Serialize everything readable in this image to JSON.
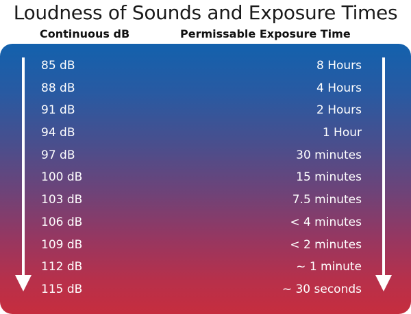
{
  "title": "Loudness of Sounds and Exposure Times",
  "headers": {
    "left": "Continuous dB",
    "right": "Permissable Exposure Time"
  },
  "colors": {
    "panel_top": "#1361ad",
    "panel_bottom": "#c62d3e",
    "text": "#ffffff"
  },
  "rows": [
    {
      "db": "85 dB",
      "time": "8 Hours"
    },
    {
      "db": "88 dB",
      "time": "4 Hours"
    },
    {
      "db": "91 dB",
      "time": "2 Hours"
    },
    {
      "db": "94 dB",
      "time": "1 Hour"
    },
    {
      "db": "97 dB",
      "time": "30 minutes"
    },
    {
      "db": "100 dB",
      "time": "15 minutes"
    },
    {
      "db": "103 dB",
      "time": "7.5 minutes"
    },
    {
      "db": "106 dB",
      "time": "< 4 minutes"
    },
    {
      "db": "109 dB",
      "time": "< 2 minutes"
    },
    {
      "db": "112 dB",
      "time": "~ 1 minute"
    },
    {
      "db": "115 dB",
      "time": "~ 30 seconds"
    }
  ]
}
